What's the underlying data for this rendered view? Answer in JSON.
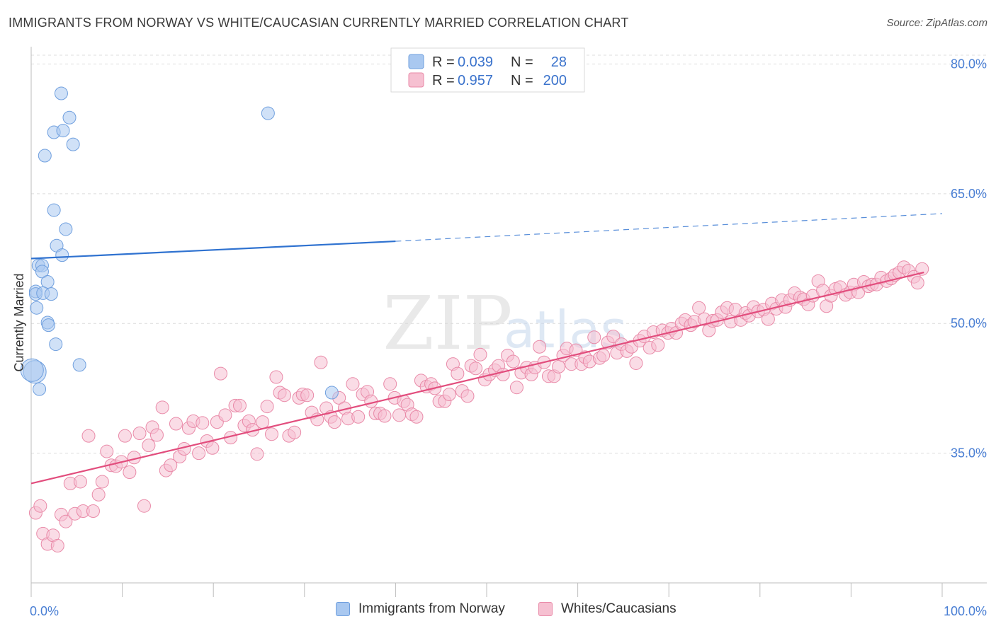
{
  "header": {
    "title": "IMMIGRANTS FROM NORWAY VS WHITE/CAUCASIAN CURRENTLY MARRIED CORRELATION CHART",
    "source": "Source: ZipAtlas.com"
  },
  "watermark": {
    "zip": "ZIP",
    "atlas": "atlas"
  },
  "legend": {
    "r_label": "R =",
    "n_label": "N =",
    "entries": [
      {
        "r": "0.039",
        "n": "28"
      },
      {
        "r": "0.957",
        "n": "200"
      }
    ]
  },
  "bottom_legend": [
    {
      "label": "Immigrants from Norway"
    },
    {
      "label": "Whites/Caucasians"
    }
  ],
  "chart_data": {
    "type": "scatter",
    "xlabel": "",
    "ylabel": "Currently Married",
    "xlim": [
      0,
      100
    ],
    "ylim": [
      20,
      82
    ],
    "x_tick_labels": [
      {
        "value": 0,
        "label": "0.0%"
      },
      {
        "value": 100,
        "label": "100.0%"
      }
    ],
    "y_ticks": [
      {
        "value": 35,
        "label": "35.0%"
      },
      {
        "value": 50,
        "label": "50.0%"
      },
      {
        "value": 65,
        "label": "65.0%"
      },
      {
        "value": 80,
        "label": "80.0%"
      }
    ],
    "x_minor_ticks": [
      0,
      10,
      20,
      30,
      40,
      50,
      60,
      70,
      80,
      90,
      100
    ],
    "grid": "dashed horizontal",
    "series": [
      {
        "name": "Immigrants from Norway",
        "color": "#a9c8f0",
        "stroke": "#6f9fde",
        "trend_color": "#2f72d0",
        "trend": {
          "x0": 0,
          "y0": 57.5,
          "x1": 40,
          "y1": 59.5,
          "x_dash_end": 100,
          "y_dash_end": 62.7
        },
        "points": [
          [
            3.3,
            76.6
          ],
          [
            2.5,
            72.1
          ],
          [
            3.5,
            72.3
          ],
          [
            4.2,
            73.8
          ],
          [
            4.6,
            70.7
          ],
          [
            1.5,
            69.4
          ],
          [
            26,
            74.3
          ],
          [
            2.5,
            63.1
          ],
          [
            3.8,
            60.9
          ],
          [
            2.8,
            59.0
          ],
          [
            3.4,
            57.9
          ],
          [
            0.8,
            56.7
          ],
          [
            1.2,
            56.7
          ],
          [
            1.2,
            56.0
          ],
          [
            1.8,
            54.8
          ],
          [
            0.5,
            53.7
          ],
          [
            0.5,
            53.4
          ],
          [
            1.3,
            53.5
          ],
          [
            2.2,
            53.4
          ],
          [
            0.6,
            51.8
          ],
          [
            1.8,
            50.1
          ],
          [
            1.9,
            49.8
          ],
          [
            2.7,
            47.6
          ],
          [
            5.3,
            45.2
          ],
          [
            0.4,
            44.4
          ],
          [
            0.9,
            42.4
          ],
          [
            33,
            42.0
          ],
          [
            0.1,
            44.6
          ]
        ]
      },
      {
        "name": "Whites/Caucasians",
        "color": "#f6c0d1",
        "stroke": "#e98aa8",
        "trend_color": "#e24d7d",
        "trend": {
          "x0": 0,
          "y0": 31.5,
          "x1": 98,
          "y1": 55.9
        },
        "points": [
          [
            0.5,
            28.1
          ],
          [
            1.0,
            28.9
          ],
          [
            1.3,
            25.7
          ],
          [
            1.8,
            24.5
          ],
          [
            2.4,
            25.5
          ],
          [
            2.9,
            24.3
          ],
          [
            3.3,
            27.9
          ],
          [
            3.8,
            27.1
          ],
          [
            4.3,
            31.5
          ],
          [
            4.8,
            28.0
          ],
          [
            5.4,
            31.7
          ],
          [
            5.7,
            28.3
          ],
          [
            6.3,
            37.0
          ],
          [
            6.8,
            28.3
          ],
          [
            7.4,
            30.2
          ],
          [
            7.8,
            31.7
          ],
          [
            8.3,
            35.2
          ],
          [
            8.8,
            33.6
          ],
          [
            9.3,
            33.5
          ],
          [
            9.9,
            34.0
          ],
          [
            10.3,
            37.0
          ],
          [
            10.8,
            32.8
          ],
          [
            11.3,
            34.5
          ],
          [
            11.9,
            37.3
          ],
          [
            12.4,
            28.9
          ],
          [
            12.9,
            35.9
          ],
          [
            13.3,
            38.0
          ],
          [
            13.8,
            37.1
          ],
          [
            14.4,
            40.3
          ],
          [
            14.8,
            33.0
          ],
          [
            15.3,
            33.6
          ],
          [
            15.9,
            38.4
          ],
          [
            16.3,
            34.6
          ],
          [
            16.8,
            35.5
          ],
          [
            17.3,
            37.9
          ],
          [
            17.8,
            38.7
          ],
          [
            18.4,
            35.0
          ],
          [
            18.8,
            38.5
          ],
          [
            19.3,
            36.4
          ],
          [
            19.9,
            35.6
          ],
          [
            20.4,
            38.6
          ],
          [
            20.8,
            44.2
          ],
          [
            21.3,
            39.4
          ],
          [
            21.9,
            36.8
          ],
          [
            22.4,
            40.5
          ],
          [
            22.9,
            40.5
          ],
          [
            23.4,
            38.2
          ],
          [
            23.9,
            38.7
          ],
          [
            24.3,
            37.7
          ],
          [
            24.8,
            34.9
          ],
          [
            25.4,
            38.6
          ],
          [
            25.9,
            40.4
          ],
          [
            26.4,
            37.2
          ],
          [
            26.9,
            43.8
          ],
          [
            27.3,
            42.0
          ],
          [
            27.8,
            41.7
          ],
          [
            28.3,
            37.0
          ],
          [
            28.9,
            37.4
          ],
          [
            29.4,
            41.4
          ],
          [
            29.8,
            41.8
          ],
          [
            30.3,
            41.7
          ],
          [
            30.8,
            39.7
          ],
          [
            31.4,
            38.9
          ],
          [
            31.8,
            45.5
          ],
          [
            32.4,
            40.2
          ],
          [
            32.9,
            39.2
          ],
          [
            33.3,
            38.6
          ],
          [
            33.8,
            41.4
          ],
          [
            34.4,
            40.2
          ],
          [
            34.8,
            39.0
          ],
          [
            35.3,
            43.0
          ],
          [
            35.9,
            39.2
          ],
          [
            36.4,
            41.8
          ],
          [
            36.9,
            42.1
          ],
          [
            37.3,
            41.0
          ],
          [
            37.8,
            39.6
          ],
          [
            38.3,
            39.6
          ],
          [
            38.8,
            39.3
          ],
          [
            39.4,
            43.0
          ],
          [
            39.9,
            41.4
          ],
          [
            40.4,
            39.4
          ],
          [
            40.9,
            41.0
          ],
          [
            41.3,
            40.6
          ],
          [
            41.8,
            39.5
          ],
          [
            42.3,
            39.2
          ],
          [
            42.8,
            43.4
          ],
          [
            43.4,
            42.7
          ],
          [
            43.9,
            43.0
          ],
          [
            44.3,
            42.5
          ],
          [
            44.8,
            41.0
          ],
          [
            45.4,
            41.0
          ],
          [
            45.9,
            41.8
          ],
          [
            46.3,
            45.3
          ],
          [
            46.8,
            44.2
          ],
          [
            47.3,
            42.2
          ],
          [
            47.9,
            41.6
          ],
          [
            48.3,
            45.1
          ],
          [
            48.8,
            44.8
          ],
          [
            49.3,
            46.4
          ],
          [
            49.8,
            43.5
          ],
          [
            50.3,
            44.1
          ],
          [
            50.9,
            44.6
          ],
          [
            51.3,
            45.1
          ],
          [
            51.8,
            44.1
          ],
          [
            52.3,
            46.3
          ],
          [
            52.9,
            45.6
          ],
          [
            53.3,
            42.6
          ],
          [
            53.8,
            44.3
          ],
          [
            54.4,
            44.9
          ],
          [
            54.9,
            44.1
          ],
          [
            55.3,
            44.9
          ],
          [
            55.8,
            47.3
          ],
          [
            56.3,
            45.5
          ],
          [
            56.8,
            43.9
          ],
          [
            57.4,
            43.9
          ],
          [
            57.9,
            45.0
          ],
          [
            58.4,
            46.3
          ],
          [
            58.8,
            47.1
          ],
          [
            59.3,
            45.3
          ],
          [
            59.8,
            46.9
          ],
          [
            60.4,
            45.3
          ],
          [
            60.8,
            46.1
          ],
          [
            61.3,
            45.6
          ],
          [
            61.8,
            48.4
          ],
          [
            62.4,
            46.0
          ],
          [
            62.8,
            46.3
          ],
          [
            63.3,
            47.8
          ],
          [
            63.9,
            48.5
          ],
          [
            64.3,
            46.6
          ],
          [
            64.8,
            47.6
          ],
          [
            65.4,
            46.8
          ],
          [
            65.9,
            47.3
          ],
          [
            66.4,
            45.4
          ],
          [
            66.8,
            48.0
          ],
          [
            67.3,
            48.5
          ],
          [
            67.9,
            47.2
          ],
          [
            68.3,
            49.0
          ],
          [
            68.8,
            47.5
          ],
          [
            69.3,
            49.2
          ],
          [
            69.9,
            48.9
          ],
          [
            70.3,
            49.4
          ],
          [
            70.8,
            48.9
          ],
          [
            71.4,
            50.0
          ],
          [
            71.8,
            50.4
          ],
          [
            72.4,
            49.8
          ],
          [
            72.8,
            50.2
          ],
          [
            73.3,
            51.8
          ],
          [
            73.9,
            50.5
          ],
          [
            74.4,
            49.2
          ],
          [
            74.8,
            50.3
          ],
          [
            75.3,
            50.4
          ],
          [
            75.8,
            51.3
          ],
          [
            76.4,
            51.8
          ],
          [
            76.8,
            50.2
          ],
          [
            77.3,
            51.6
          ],
          [
            77.9,
            50.4
          ],
          [
            78.4,
            51.2
          ],
          [
            78.8,
            50.9
          ],
          [
            79.3,
            51.9
          ],
          [
            79.8,
            51.4
          ],
          [
            80.4,
            51.6
          ],
          [
            80.9,
            50.5
          ],
          [
            81.3,
            52.3
          ],
          [
            81.8,
            51.7
          ],
          [
            82.4,
            52.7
          ],
          [
            82.8,
            51.9
          ],
          [
            83.3,
            52.7
          ],
          [
            83.8,
            53.5
          ],
          [
            84.4,
            53.0
          ],
          [
            84.8,
            52.8
          ],
          [
            85.3,
            52.2
          ],
          [
            85.8,
            53.2
          ],
          [
            86.4,
            54.9
          ],
          [
            86.9,
            53.8
          ],
          [
            87.3,
            52.0
          ],
          [
            87.8,
            53.2
          ],
          [
            88.3,
            54.0
          ],
          [
            88.8,
            54.2
          ],
          [
            89.4,
            53.3
          ],
          [
            89.9,
            53.6
          ],
          [
            90.3,
            54.5
          ],
          [
            90.8,
            53.6
          ],
          [
            91.4,
            54.8
          ],
          [
            91.9,
            54.3
          ],
          [
            92.3,
            54.5
          ],
          [
            92.8,
            54.5
          ],
          [
            93.3,
            55.3
          ],
          [
            93.9,
            54.9
          ],
          [
            94.4,
            55.2
          ],
          [
            94.8,
            55.6
          ],
          [
            95.3,
            55.9
          ],
          [
            95.8,
            56.5
          ],
          [
            96.3,
            56.1
          ],
          [
            96.9,
            55.4
          ],
          [
            97.3,
            54.7
          ],
          [
            97.8,
            56.3
          ]
        ]
      }
    ]
  }
}
